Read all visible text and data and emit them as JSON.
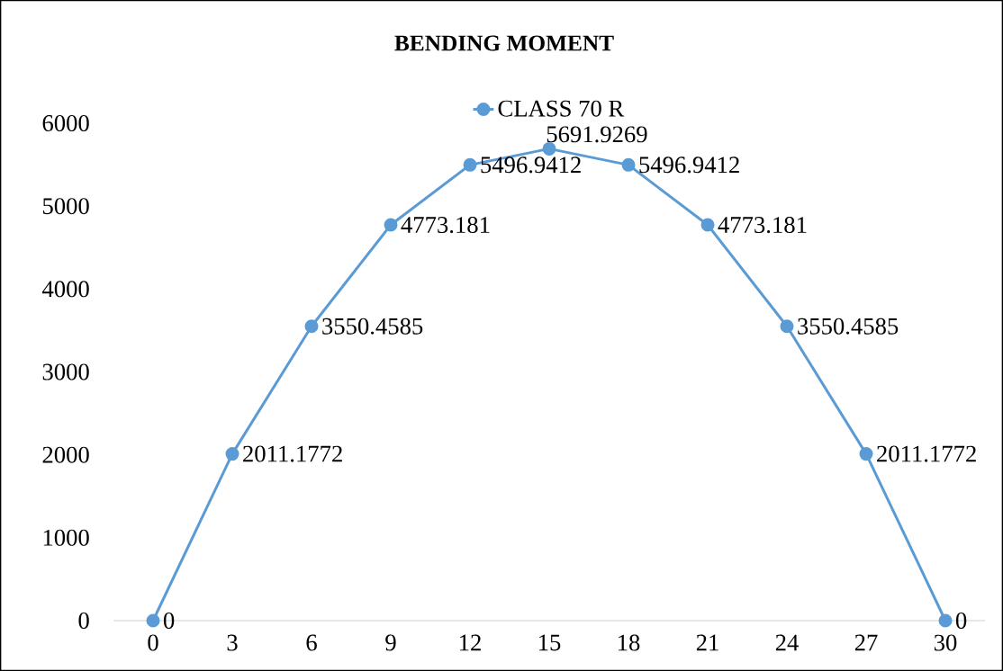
{
  "chart_data": {
    "type": "line",
    "title": "BENDING MOMENT",
    "categories": [
      "0",
      "3",
      "6",
      "9",
      "12",
      "15",
      "18",
      "21",
      "24",
      "27",
      "30"
    ],
    "series": [
      {
        "name": "CLASS 70 R",
        "color": "#5b9bd5",
        "values": [
          0,
          2011.1772,
          3550.4585,
          4773.181,
          5496.9412,
          5691.9269,
          5496.9412,
          4773.181,
          3550.4585,
          2011.1772,
          0
        ]
      }
    ],
    "ylim": [
      0,
      6000
    ],
    "yticks": [
      0,
      1000,
      2000,
      3000,
      4000,
      5000,
      6000
    ],
    "data_labels": true,
    "legend": "top",
    "marker": "circle",
    "line_style": "solid",
    "grid": false
  }
}
